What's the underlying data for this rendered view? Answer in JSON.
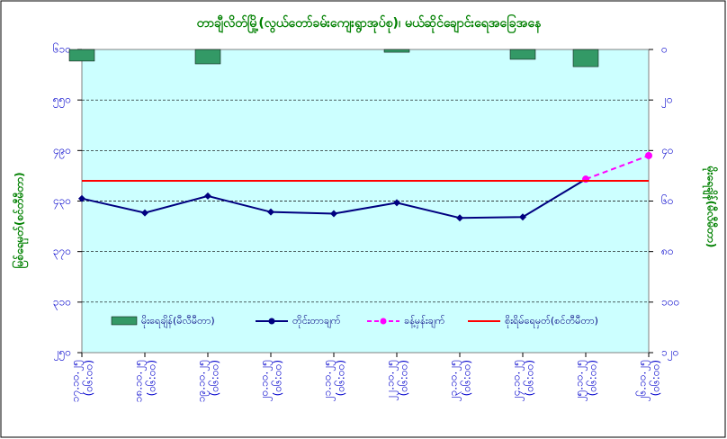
{
  "chart_data": {
    "type": "combo",
    "title": "တာချီလိတ်မြို့(လွယ်တော်ခမ်းကျေးရွာအုပ်စု)၊ မယ်ဆိုင်ချောင်းရေအခြေအနေ",
    "y_label": "မြစ်ရေမှတ်(စင်တီမီတာ)",
    "y2_label": "မိုးရေချိန်(မီလီမီတာ)",
    "categories": [
      "၁၇.၁၀.၂၅",
      "၁၈.၁၀.၂၅",
      "၁၉.၁၀.၂၅",
      "၂၀.၁၀.၂၅",
      "၂၁.၁၀.၂၅",
      "၂၂.၁၀.၂၅",
      "၂၃.၁၀.၂၅",
      "၂၄.၁၀.၂၅",
      "၂၅.၁၀.၂၅",
      "၂၆.၁၀.၂၅"
    ],
    "category_times": [
      "(၀၆:၀၀)",
      "(၀၆:၀၀)",
      "(၀၆:၀၀)",
      "(၀၆:၀၀)",
      "(၀၆:၀၀)",
      "(၀၆:၀၀)",
      "(၀၆:၀၀)",
      "(၀၆:၀၀)",
      "(၀၆:၀၀)",
      "(၀၆:၀၀)"
    ],
    "ylim": [
      250,
      610
    ],
    "yticks": [
      {
        "value": 250,
        "label": "၂၅၀"
      },
      {
        "value": 310,
        "label": "၃၁၀"
      },
      {
        "value": 370,
        "label": "၃၇၀"
      },
      {
        "value": 430,
        "label": "၄၃၀"
      },
      {
        "value": 490,
        "label": "၄၉၀"
      },
      {
        "value": 550,
        "label": "၅၅၀"
      },
      {
        "value": 610,
        "label": "၆၁၀"
      }
    ],
    "y2lim": [
      0,
      120
    ],
    "y2_inverted": true,
    "y2ticks": [
      {
        "value": 0,
        "label": "၀"
      },
      {
        "value": 20,
        "label": "၂၀"
      },
      {
        "value": 40,
        "label": "၄၀"
      },
      {
        "value": 60,
        "label": "၆၀"
      },
      {
        "value": 80,
        "label": "၈၀"
      },
      {
        "value": 100,
        "label": "၁၀၀"
      },
      {
        "value": 120,
        "label": "၁၂၀"
      }
    ],
    "grid": true,
    "series": [
      {
        "name": "မိုးရေချိန်(မီလီမီတာ)",
        "type": "bar",
        "axis": "y2",
        "color": "#339966",
        "values": [
          4.6,
          0,
          5.7,
          0,
          0,
          1.1,
          0,
          3.9,
          6.8,
          0
        ]
      },
      {
        "name": "တိုင်းတာချက်",
        "type": "line",
        "color": "#000080",
        "values": [
          433,
          416,
          436,
          417,
          415,
          428,
          410,
          411,
          456,
          null
        ]
      },
      {
        "name": "ခန့်မှန်းချက်",
        "type": "line",
        "dashed": true,
        "color": "#ff00ff",
        "values": [
          null,
          null,
          null,
          null,
          null,
          null,
          null,
          null,
          456,
          484
        ]
      },
      {
        "name": "စိုးရိမ်ရေမှတ်(စင်တီမီတာ)",
        "type": "hline",
        "color": "#ff0000",
        "value": 454
      }
    ]
  }
}
